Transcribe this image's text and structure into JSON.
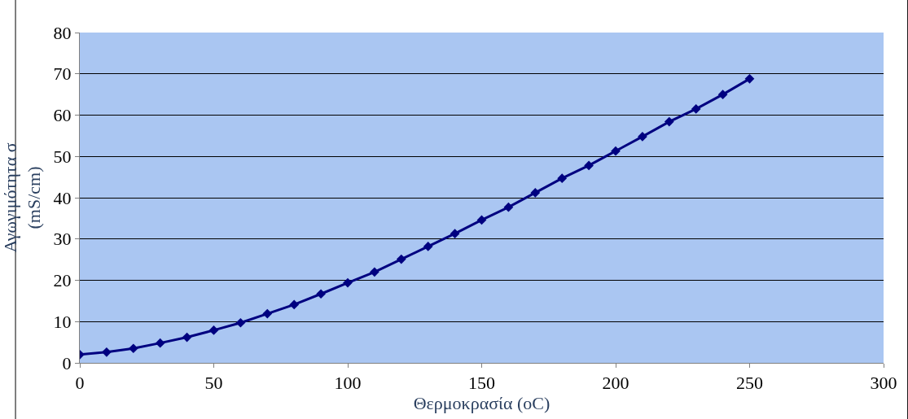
{
  "chart_data": {
    "type": "line",
    "xlabel": "Θερμοκρασία (oC)",
    "ylabel": "Αγωγιμότητα σ (mS/cm)",
    "x": [
      0,
      10,
      20,
      30,
      40,
      50,
      60,
      70,
      80,
      90,
      100,
      110,
      120,
      130,
      140,
      150,
      160,
      170,
      180,
      190,
      200,
      210,
      220,
      230,
      240,
      250
    ],
    "series": [
      {
        "color": "#000080",
        "values": [
          2.0,
          2.6,
          3.5,
          4.8,
          6.2,
          7.9,
          9.7,
          11.9,
          14.1,
          16.7,
          19.4,
          22.0,
          25.1,
          28.2,
          31.3,
          34.6,
          37.7,
          41.2,
          44.7,
          47.8,
          51.3,
          54.8,
          58.4,
          61.5,
          65.0,
          68.8
        ]
      }
    ],
    "xlim": [
      0,
      300
    ],
    "xticks": [
      0,
      50,
      100,
      150,
      200,
      250,
      300
    ],
    "ylim": [
      0,
      80
    ],
    "yticks": [
      0,
      10,
      20,
      30,
      40,
      50,
      60,
      70,
      80
    ],
    "grid": "y",
    "marker": "diamond",
    "line_style": "solid"
  }
}
